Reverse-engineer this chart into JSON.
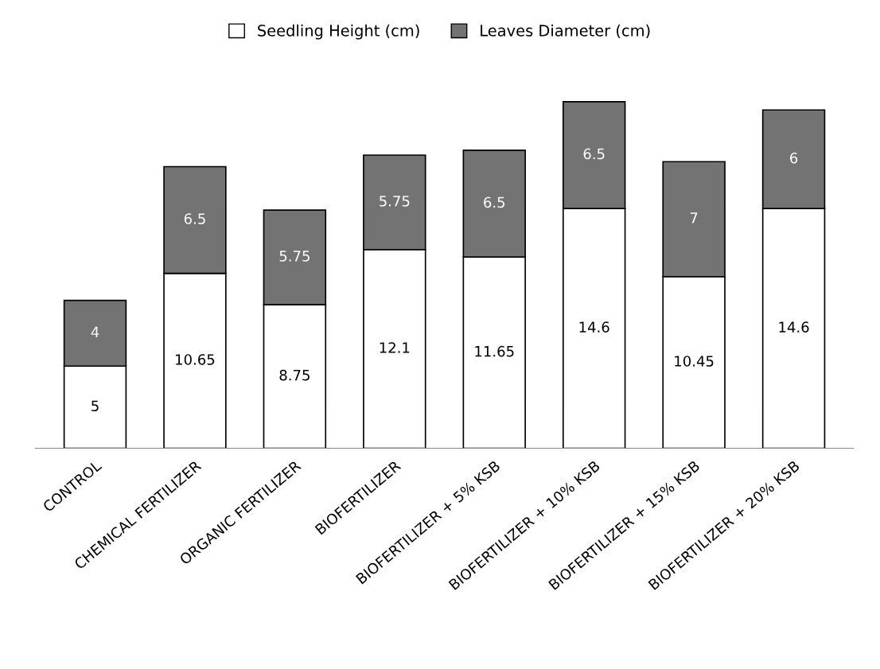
{
  "chart_data": {
    "type": "bar",
    "stacked": true,
    "data_labels": true,
    "grid": false,
    "legend": "top",
    "categories": [
      "CONTROL",
      "CHEMICAL FERTILIZER",
      "ORGANIC FERTILIZER",
      "BIOFERTILIZER",
      "BIOFERTILIZER + 5% KSB",
      "BIOFERTILIZER + 10% KSB",
      "BIOFERTILIZER + 15% KSB",
      "BIOFERTILIZER + 20% KSB"
    ],
    "series": [
      {
        "name": "Seedling Height (cm)",
        "color": "#ffffff",
        "values": [
          5,
          10.65,
          8.75,
          12.1,
          11.65,
          14.6,
          10.45,
          14.6
        ]
      },
      {
        "name": "Leaves Diameter (cm)",
        "color": "#737373",
        "values": [
          4,
          6.5,
          5.75,
          5.75,
          6.5,
          6.5,
          7,
          6
        ]
      }
    ]
  }
}
